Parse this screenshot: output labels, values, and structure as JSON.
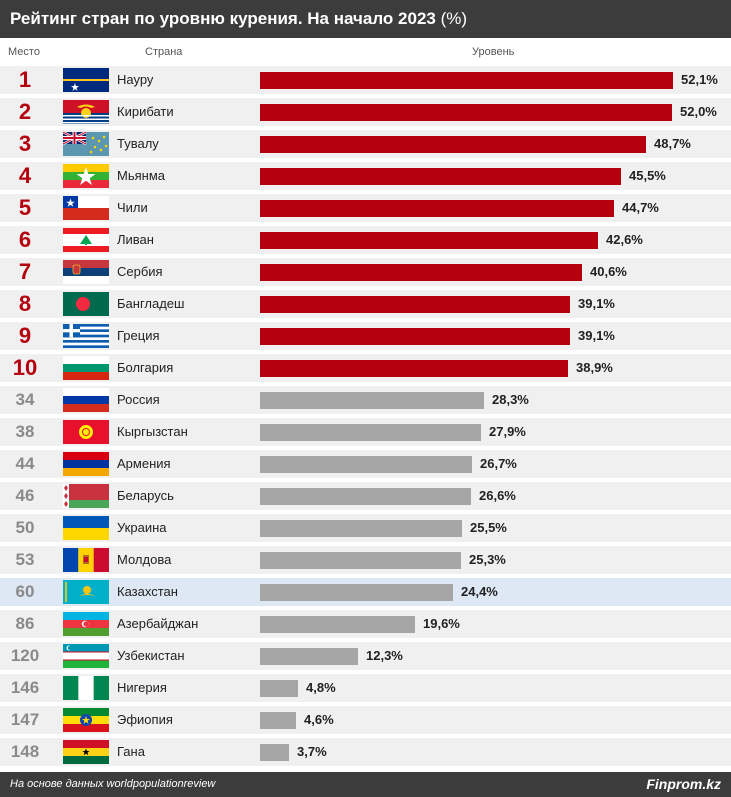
{
  "header": {
    "title_main": "Рейтинг стран по уровню курения. На начало 2023",
    "title_unit": "(%)"
  },
  "columns": {
    "place": "Место",
    "country": "Страна",
    "level": "Уровень"
  },
  "footer": {
    "source": "На основе данных worldpopulationreview",
    "brand": "Finprom.kz"
  },
  "colors": {
    "top10_bar": "#b5000f",
    "other_bar": "#a6a6a6",
    "highlight_row": "#dde8f4",
    "row_bg": "#f0f0f0",
    "header_bg": "#3c3c3c"
  },
  "chart_data": {
    "type": "bar",
    "orientation": "horizontal",
    "value_unit": "%",
    "rows": [
      {
        "rank": "1",
        "country": "Науру",
        "value": 52.1,
        "label": "52,1%",
        "top": true,
        "flag": "nauru-flag"
      },
      {
        "rank": "2",
        "country": "Кирибати",
        "value": 52.0,
        "label": "52,0%",
        "top": true,
        "flag": "kiribati-flag"
      },
      {
        "rank": "3",
        "country": "Тувалу",
        "value": 48.7,
        "label": "48,7%",
        "top": true,
        "flag": "tuvalu-flag"
      },
      {
        "rank": "4",
        "country": "Мьянма",
        "value": 45.5,
        "label": "45,5%",
        "top": true,
        "flag": "myanmar-flag"
      },
      {
        "rank": "5",
        "country": "Чили",
        "value": 44.7,
        "label": "44,7%",
        "top": true,
        "flag": "chile-flag"
      },
      {
        "rank": "6",
        "country": "Ливан",
        "value": 42.6,
        "label": "42,6%",
        "top": true,
        "flag": "lebanon-flag"
      },
      {
        "rank": "7",
        "country": "Сербия",
        "value": 40.6,
        "label": "40,6%",
        "top": true,
        "flag": "serbia-flag"
      },
      {
        "rank": "8",
        "country": "Бангладеш",
        "value": 39.1,
        "label": "39,1%",
        "top": true,
        "flag": "bangladesh-flag"
      },
      {
        "rank": "9",
        "country": "Греция",
        "value": 39.1,
        "label": "39,1%",
        "top": true,
        "flag": "greece-flag"
      },
      {
        "rank": "10",
        "country": "Болгария",
        "value": 38.9,
        "label": "38,9%",
        "top": true,
        "flag": "bulgaria-flag"
      },
      {
        "rank": "34",
        "country": "Россия",
        "value": 28.3,
        "label": "28,3%",
        "top": false,
        "flag": "russia-flag"
      },
      {
        "rank": "38",
        "country": "Кыргызстан",
        "value": 27.9,
        "label": "27,9%",
        "top": false,
        "flag": "kyrgyzstan-flag"
      },
      {
        "rank": "44",
        "country": "Армения",
        "value": 26.7,
        "label": "26,7%",
        "top": false,
        "flag": "armenia-flag"
      },
      {
        "rank": "46",
        "country": "Беларусь",
        "value": 26.6,
        "label": "26,6%",
        "top": false,
        "flag": "belarus-flag"
      },
      {
        "rank": "50",
        "country": "Украина",
        "value": 25.5,
        "label": "25,5%",
        "top": false,
        "flag": "ukraine-flag"
      },
      {
        "rank": "53",
        "country": "Молдова",
        "value": 25.3,
        "label": "25,3%",
        "top": false,
        "flag": "moldova-flag"
      },
      {
        "rank": "60",
        "country": "Казахстан",
        "value": 24.4,
        "label": "24,4%",
        "top": false,
        "highlight": true,
        "flag": "kazakhstan-flag"
      },
      {
        "rank": "86",
        "country": "Азербайджан",
        "value": 19.6,
        "label": "19,6%",
        "top": false,
        "flag": "azerbaijan-flag"
      },
      {
        "rank": "120",
        "country": "Узбекистан",
        "value": 12.3,
        "label": "12,3%",
        "top": false,
        "flag": "uzbekistan-flag"
      },
      {
        "rank": "146",
        "country": "Нигерия",
        "value": 4.8,
        "label": "4,8%",
        "top": false,
        "flag": "nigeria-flag"
      },
      {
        "rank": "147",
        "country": "Эфиопия",
        "value": 4.6,
        "label": "4,6%",
        "top": false,
        "flag": "ethiopia-flag"
      },
      {
        "rank": "148",
        "country": "Гана",
        "value": 3.7,
        "label": "3,7%",
        "top": false,
        "flag": "ghana-flag"
      }
    ]
  }
}
